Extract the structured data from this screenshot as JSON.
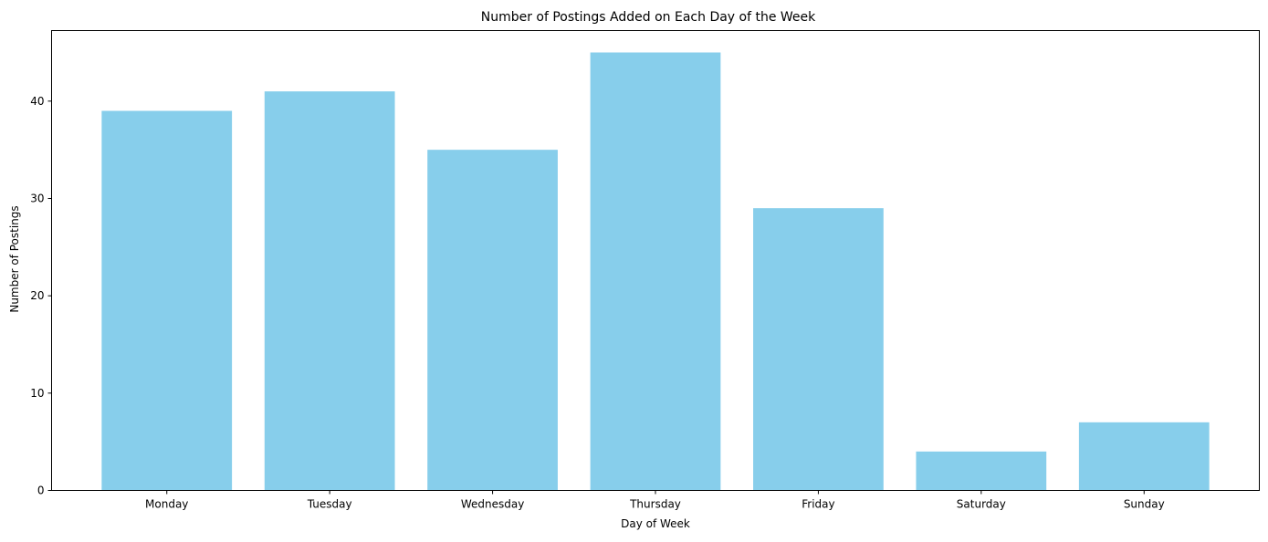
{
  "chart_data": {
    "type": "bar",
    "title": "Number of Postings Added on Each Day of the Week",
    "xlabel": "Day of Week",
    "ylabel": "Number of Postings",
    "categories": [
      "Monday",
      "Tuesday",
      "Wednesday",
      "Thursday",
      "Friday",
      "Saturday",
      "Sunday"
    ],
    "values": [
      39,
      41,
      35,
      45,
      29,
      4,
      7
    ],
    "ylim": [
      0,
      47.25
    ],
    "yticks": [
      0,
      10,
      20,
      30,
      40
    ],
    "grid": false,
    "bar_color": "#87ceeb"
  }
}
